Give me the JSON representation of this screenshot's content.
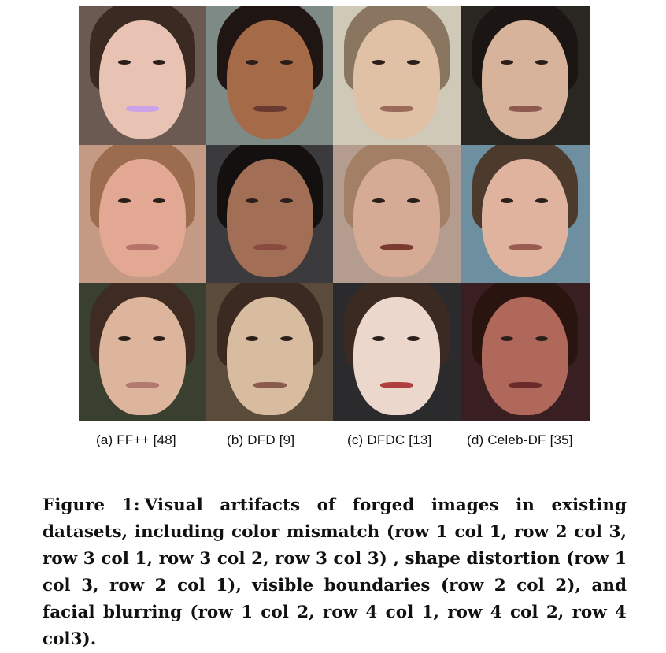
{
  "grid": {
    "cells": [
      {
        "bg": "#6b5a52",
        "skin": "#e8c3b4",
        "hair": "#3b2a22",
        "mouth": "#c9a2e8"
      },
      {
        "bg": "#7d8a86",
        "skin": "#a56a48",
        "hair": "#1f1512",
        "mouth": "#6a3a30"
      },
      {
        "bg": "#cfc9b8",
        "skin": "#e1c1a6",
        "hair": "#8a7660",
        "mouth": "#9b6a5a"
      },
      {
        "bg": "#2a2622",
        "skin": "#d8b39c",
        "hair": "#1b1613",
        "mouth": "#8e5a50"
      },
      {
        "bg": "#c59a85",
        "skin": "#e2a894",
        "hair": "#9b6c4d",
        "mouth": "#b5736a"
      },
      {
        "bg": "#3b3a3c",
        "skin": "#a26f56",
        "hair": "#151010",
        "mouth": "#8a4a40"
      },
      {
        "bg": "#b49d8f",
        "skin": "#d6ab95",
        "hair": "#a37f66",
        "mouth": "#7a3a30"
      },
      {
        "bg": "#6d8fa0",
        "skin": "#e0b39e",
        "hair": "#4c3a2c",
        "mouth": "#9a5a50"
      },
      {
        "bg": "#3a4030",
        "skin": "#dcb59c",
        "hair": "#3e2b22",
        "mouth": "#b07a6e"
      },
      {
        "bg": "#5a4b3a",
        "skin": "#d7bca0",
        "hair": "#3a2a22",
        "mouth": "#8a5a4c"
      },
      {
        "bg": "#2b2b2e",
        "skin": "#ecd7cc",
        "hair": "#3a2a22",
        "mouth": "#b04040"
      },
      {
        "bg": "#3a1f22",
        "skin": "#b0685a",
        "hair": "#2a1410",
        "mouth": "#6a2a2a"
      }
    ]
  },
  "subfigure_captions": [
    "(a)  FF++ [48]",
    "(b)  DFD [9]",
    "(c)  DFDC [13]",
    "(d)  Celeb-DF [35]"
  ],
  "figure_caption": {
    "label": "Figure 1:",
    "text": "Visual artifacts of forged images in existing datasets, including color mismatch (row 1 col 1, row 2 col 3, row 3 col 1, row 3 col 2, row 3 col 3) , shape distortion (row 1 col 3, row 2 col 1), visible boundaries (row 2 col 2), and facial blurring (row 1 col 2, row 4 col 1, row 4 col 2, row 4 col3)."
  }
}
